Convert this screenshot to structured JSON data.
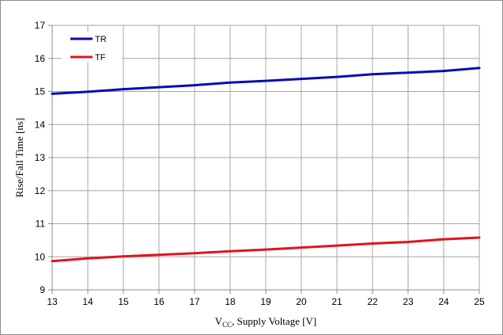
{
  "chart_data": {
    "type": "line",
    "title": "",
    "xlabel_main": "V",
    "xlabel_sub": "CC",
    "xlabel_rest": ", Supply Voltage [V]",
    "ylabel": "Rise/Fall Time  [ns]",
    "x": [
      13,
      14,
      15,
      16,
      17,
      18,
      19,
      20,
      21,
      22,
      23,
      24,
      25
    ],
    "xlim": [
      13,
      25
    ],
    "ylim": [
      9,
      17
    ],
    "x_ticks": [
      13,
      14,
      15,
      16,
      17,
      18,
      19,
      20,
      21,
      22,
      23,
      24,
      25
    ],
    "y_ticks": [
      9,
      10,
      11,
      12,
      13,
      14,
      15,
      16,
      17
    ],
    "grid": true,
    "legend_position": "top-left",
    "series": [
      {
        "name": "TR",
        "color": "#0a0ab4",
        "values": [
          14.93,
          14.99,
          15.07,
          15.13,
          15.19,
          15.27,
          15.32,
          15.38,
          15.44,
          15.52,
          15.57,
          15.62,
          15.71
        ]
      },
      {
        "name": "TF",
        "color": "#e0141e",
        "values": [
          9.87,
          9.95,
          10.01,
          10.06,
          10.11,
          10.17,
          10.22,
          10.28,
          10.34,
          10.4,
          10.45,
          10.53,
          10.58
        ]
      }
    ],
    "grid_color": "#a6a6a6",
    "axis_color": "#8c8c8c"
  }
}
